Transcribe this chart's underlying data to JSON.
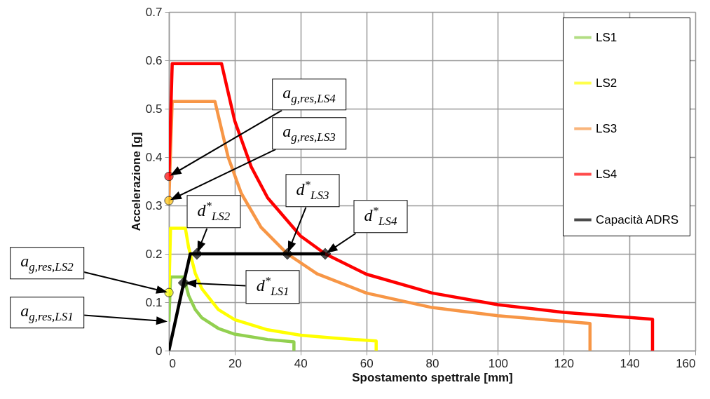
{
  "chart_data": {
    "type": "line",
    "xlabel": "Spostamento spettrale [mm]",
    "ylabel": "Accelerazione [g]",
    "xlim": [
      0,
      160
    ],
    "xticks": [
      0,
      20,
      40,
      60,
      80,
      100,
      120,
      140,
      160
    ],
    "ylim": [
      0,
      0.7
    ],
    "yticks": [
      0,
      0.1,
      0.2,
      0.3,
      0.4,
      0.5,
      0.6,
      0.7
    ],
    "grid": true,
    "legend": "top right",
    "line_style": "solid",
    "series": [
      {
        "name": "LS1",
        "color": "#92d050",
        "x": [
          0,
          0.5,
          4.5,
          6,
          8,
          10,
          15,
          20,
          30,
          38,
          38
        ],
        "values": [
          0.06,
          0.152,
          0.152,
          0.114,
          0.085,
          0.068,
          0.046,
          0.034,
          0.023,
          0.018,
          0
        ]
      },
      {
        "name": "LS2",
        "color": "#ffff00",
        "x": [
          0,
          0.5,
          5,
          6,
          8,
          10,
          15,
          20,
          30,
          40,
          50,
          63,
          63
        ],
        "values": [
          0.12,
          0.253,
          0.253,
          0.213,
          0.16,
          0.128,
          0.085,
          0.064,
          0.043,
          0.032,
          0.026,
          0.02,
          0
        ]
      },
      {
        "name": "LS3",
        "color": "#f79646",
        "x": [
          0,
          1,
          14,
          18,
          22,
          28,
          36,
          45,
          60,
          80,
          100,
          128,
          128
        ],
        "values": [
          0.31,
          0.515,
          0.515,
          0.4,
          0.325,
          0.255,
          0.2,
          0.159,
          0.119,
          0.089,
          0.072,
          0.056,
          0
        ]
      },
      {
        "name": "LS4",
        "color": "#ff0000",
        "x": [
          0,
          1,
          16,
          20,
          25,
          30,
          40,
          47.5,
          60,
          80,
          100,
          120,
          147,
          147
        ],
        "values": [
          0.36,
          0.593,
          0.593,
          0.475,
          0.38,
          0.316,
          0.237,
          0.2,
          0.158,
          0.119,
          0.095,
          0.079,
          0.065,
          0
        ]
      },
      {
        "name": "Capacità ADRS",
        "color": "#000000",
        "x": [
          0,
          4.5,
          6.5,
          8.5,
          36,
          47.5
        ],
        "values": [
          0,
          0.14,
          0.2,
          0.2,
          0.2,
          0.2
        ]
      },
      {
        "type": "scatter",
        "marker": "diamond",
        "color": "#000000",
        "x": [
          4.5,
          8.5,
          36,
          47.5
        ],
        "values": [
          0.14,
          0.2,
          0.2,
          0.2
        ]
      },
      {
        "type": "scatter",
        "marker": "circle",
        "colors": [
          "#ffff00",
          "#ffc000",
          "#ff0000"
        ],
        "x": [
          0,
          0,
          0
        ],
        "values": [
          0.12,
          0.31,
          0.36
        ]
      }
    ],
    "annotations": [
      "a$_{g,res,LS4}$",
      "a$_{g,res,LS3}$",
      "a$_{g,res,LS2}$",
      "a$_{g,res,LS1}$",
      "d$^{*}$$_{LS1}$",
      "d$^{*}$$_{LS2}$",
      "d$^{*}$$_{LS3}$",
      "d$^{*}$$_{LS4}$"
    ]
  }
}
